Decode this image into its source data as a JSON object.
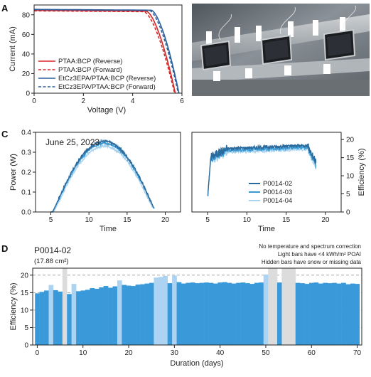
{
  "panels": {
    "a": "A",
    "b": "B",
    "c": "C",
    "d": "D"
  },
  "chart_data": [
    {
      "id": "A",
      "type": "line",
      "xlabel": "Voltage (V)",
      "ylabel": "Current (mA)",
      "xlim": [
        0,
        6
      ],
      "ylim": [
        0,
        90
      ],
      "xticks": [
        0,
        2,
        4,
        6
      ],
      "yticks": [
        0,
        20,
        40,
        60,
        80
      ],
      "legend_position": "lower-left",
      "series": [
        {
          "name": "PTAA:BCP (Reverse)",
          "color": "#d62728",
          "dash": "solid",
          "isc": 84.5,
          "voc": 5.73,
          "knee": 4.55
        },
        {
          "name": "PTAA:BCP (Forward)",
          "color": "#d62728",
          "dash": "dashed",
          "isc": 84.0,
          "voc": 5.7,
          "knee": 4.45
        },
        {
          "name": "EtCz3EPA/PTAA:BCP (Reverse)",
          "color": "#2c5f9e",
          "dash": "solid",
          "isc": 85.5,
          "voc": 5.88,
          "knee": 4.75
        },
        {
          "name": "EtCz3EPA/PTAA:BCP (Forward)",
          "color": "#2c5f9e",
          "dash": "dashed",
          "isc": 85.2,
          "voc": 5.85,
          "knee": 4.68
        }
      ]
    },
    {
      "id": "C-left",
      "type": "line",
      "annotation": "June 25, 2023",
      "xlabel": "Time",
      "ylabel": "Power (W)",
      "xlim": [
        3,
        22
      ],
      "ylim": [
        0,
        0.4
      ],
      "xticks": [
        5,
        10,
        15,
        20
      ],
      "yticks": [
        0.0,
        0.1,
        0.2,
        0.3,
        0.4
      ],
      "series": [
        {
          "name": "P0014-02",
          "color": "#2b6a9c",
          "peak": 0.355,
          "start": 5.0,
          "end": 18.6
        },
        {
          "name": "P0014-03",
          "color": "#3c9bd4",
          "peak": 0.345,
          "start": 5.0,
          "end": 18.6
        },
        {
          "name": "P0014-04",
          "color": "#a8d4f0",
          "peak": 0.33,
          "start": 5.1,
          "end": 18.4
        }
      ]
    },
    {
      "id": "C-right",
      "type": "line",
      "xlabel": "Time",
      "ylabel": "Efficiency (%)",
      "xlim": [
        3,
        22
      ],
      "ylim": [
        0,
        22
      ],
      "xticks": [
        5,
        10,
        15,
        20
      ],
      "yticks": [
        0,
        5,
        10,
        15,
        20
      ],
      "legend_position": "lower-right",
      "series": [
        {
          "name": "P0014-02",
          "color": "#2b6a9c",
          "level": 18.3
        },
        {
          "name": "P0014-03",
          "color": "#3c9bd4",
          "level": 17.8
        },
        {
          "name": "P0014-04",
          "color": "#a8d4f0",
          "level": 17.3
        }
      ]
    },
    {
      "id": "D",
      "type": "bar",
      "title": "P0014-02",
      "subtitle": "(17.88 cm²)",
      "notes": [
        "No temperature and spectrum correction",
        "Light bars have <4 kWh/m² POAI",
        "Hidden bars have snow or missing data"
      ],
      "xlabel": "Duration (days)",
      "ylabel": "Efficiency (%)",
      "xlim": [
        -1,
        71
      ],
      "ylim": [
        0,
        22
      ],
      "xticks": [
        0,
        10,
        20,
        30,
        40,
        50,
        60,
        70
      ],
      "yticks": [
        0,
        5,
        10,
        15,
        20
      ],
      "grid": "horizontal dashed",
      "colors": {
        "normal": "#3a9ad9",
        "light": "#acd3f2",
        "hidden": "#dcdcdc"
      },
      "values": [
        14.8,
        15.2,
        15.6,
        17.2,
        15.7,
        15.3,
        15.1,
        14.6,
        17.5,
        15.4,
        15.6,
        15.8,
        16.3,
        16.1,
        16.5,
        16.9,
        16.4,
        16.8,
        18.5,
        17.2,
        17.0,
        16.9,
        17.3,
        17.4,
        17.6,
        17.8,
        19.3,
        19.5,
        19.8,
        17.7,
        19.9,
        18.0,
        17.6,
        17.8,
        17.9,
        17.7,
        17.8,
        17.9,
        17.8,
        17.6,
        17.9,
        18.0,
        17.8,
        17.6,
        17.8,
        17.9,
        17.7,
        17.5,
        17.8,
        17.9,
        20.2,
        17.8,
        17.6,
        17.9,
        17.7,
        17.8,
        17.6,
        17.8,
        17.7,
        17.5,
        17.8,
        17.9,
        17.6,
        17.8,
        17.7,
        17.8,
        17.6,
        17.8,
        17.4,
        17.6,
        17.5
      ],
      "light_days": [
        3,
        8,
        18,
        26,
        27,
        28,
        30,
        50
      ],
      "hidden_days": [
        6,
        51,
        52,
        54,
        55,
        56
      ],
      "hidden_height": 22
    }
  ]
}
